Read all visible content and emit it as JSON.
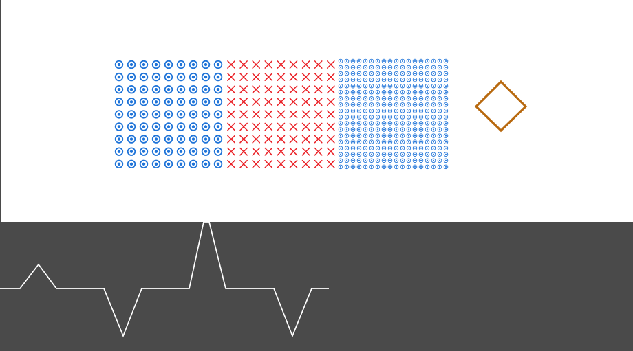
{
  "scene": {
    "description_free": true,
    "colors": {
      "background": "#ffffff",
      "panel": "#4a4a4a",
      "target_blue": "#1e73d8",
      "cross_red": "#ea1f25",
      "diamond": "#b8690f",
      "waveform": "#ffffff"
    },
    "grids": {
      "large_targets": {
        "columns": 9,
        "rows": 9,
        "icon": "target-icon"
      },
      "crosses": {
        "columns": 9,
        "rows": 9,
        "icon": "cross-icon"
      },
      "small_targets": {
        "columns": 18,
        "rows": 18,
        "icon": "small-target-icon"
      }
    },
    "selector": {
      "icon": "diamond-icon"
    },
    "waveform": {
      "icon": "waveform-icon",
      "segments": [
        "bump",
        "dip",
        "spike",
        "dip"
      ]
    }
  }
}
